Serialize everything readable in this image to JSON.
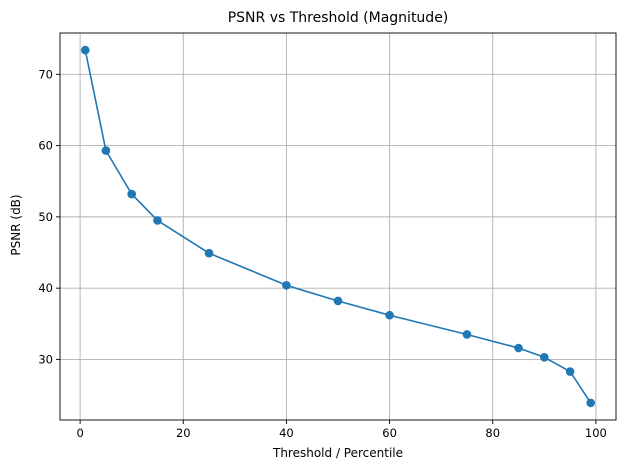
{
  "chart_data": {
    "type": "line",
    "title": "PSNR vs Threshold (Magnitude)",
    "xlabel": "Threshold / Percentile",
    "ylabel": "PSNR (dB)",
    "xlim": [
      -3.9,
      103.9
    ],
    "ylim": [
      21.5,
      75.8
    ],
    "xticks": [
      0,
      20,
      40,
      60,
      80,
      100
    ],
    "yticks": [
      30,
      40,
      50,
      60,
      70
    ],
    "grid": true,
    "color": "#1f77b4",
    "marker": "circle",
    "series": [
      {
        "x": [
          1,
          5,
          10,
          15,
          25,
          40,
          50,
          60,
          75,
          85,
          90,
          95,
          99
        ],
        "y": [
          73.4,
          59.3,
          53.2,
          49.5,
          44.9,
          40.4,
          38.2,
          36.2,
          33.5,
          31.6,
          30.3,
          28.3,
          23.9
        ]
      }
    ]
  }
}
